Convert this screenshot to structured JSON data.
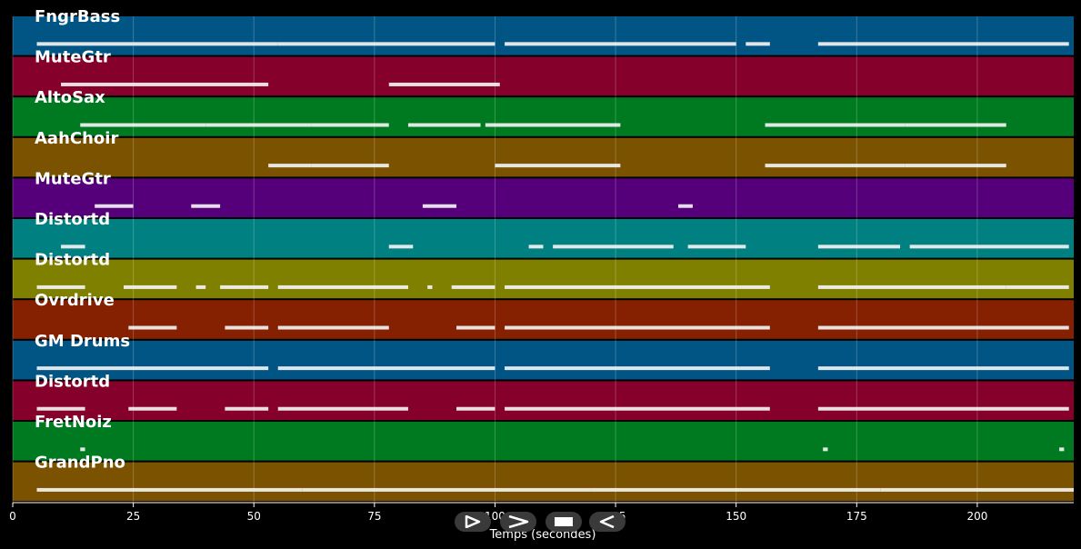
{
  "chart_data": {
    "type": "piano-roll",
    "xlabel": "Temps (secondes)",
    "xlim": [
      0,
      220
    ],
    "x_ticks": [
      0,
      25,
      50,
      75,
      100,
      125,
      150,
      175,
      200
    ],
    "grid": true,
    "tracks": [
      {
        "name": "FngrBass",
        "color": "#005585",
        "notes": [
          [
            5,
            25
          ],
          [
            25,
            55
          ],
          [
            55,
            100
          ],
          [
            102,
            150
          ],
          [
            152,
            157
          ],
          [
            167,
            219
          ]
        ]
      },
      {
        "name": "MuteGtr",
        "color": "#85002b",
        "notes": [
          [
            10,
            53
          ],
          [
            78,
            101
          ]
        ]
      },
      {
        "name": "AltoSax",
        "color": "#007a20",
        "notes": [
          [
            14,
            40
          ],
          [
            40,
            62
          ],
          [
            62,
            78
          ],
          [
            82,
            97
          ],
          [
            98,
            126
          ],
          [
            156,
            185
          ],
          [
            185,
            206
          ]
        ]
      },
      {
        "name": "AahChoir",
        "color": "#7a5200",
        "notes": [
          [
            53,
            62
          ],
          [
            62,
            78
          ],
          [
            100,
            126
          ],
          [
            156,
            185
          ],
          [
            185,
            206
          ]
        ]
      },
      {
        "name": "MuteGtr",
        "color": "#55007a",
        "notes": [
          [
            17,
            25
          ],
          [
            37,
            43
          ],
          [
            85,
            92
          ],
          [
            138,
            141
          ]
        ]
      },
      {
        "name": "Distortd",
        "color": "#008080",
        "notes": [
          [
            10,
            15
          ],
          [
            78,
            83
          ],
          [
            107,
            110
          ],
          [
            112,
            137
          ],
          [
            140,
            152
          ],
          [
            167,
            184
          ],
          [
            186,
            219
          ]
        ]
      },
      {
        "name": "Distortd",
        "color": "#808000",
        "notes": [
          [
            5,
            15
          ],
          [
            23,
            34
          ],
          [
            38,
            40
          ],
          [
            43,
            53
          ],
          [
            55,
            82
          ],
          [
            86,
            87
          ],
          [
            91,
            100
          ],
          [
            102,
            157
          ],
          [
            167,
            206
          ],
          [
            206,
            219
          ]
        ]
      },
      {
        "name": "Ovrdrive",
        "color": "#852000",
        "notes": [
          [
            24,
            34
          ],
          [
            44,
            53
          ],
          [
            55,
            78
          ],
          [
            92,
            100
          ],
          [
            102,
            157
          ],
          [
            167,
            219
          ]
        ]
      },
      {
        "name": "GM Drums",
        "color": "#005585",
        "notes": [
          [
            5,
            53
          ],
          [
            55,
            100
          ],
          [
            102,
            157
          ],
          [
            167,
            219
          ]
        ]
      },
      {
        "name": "Distortd",
        "color": "#85002b",
        "notes": [
          [
            5,
            15
          ],
          [
            24,
            34
          ],
          [
            44,
            53
          ],
          [
            55,
            82
          ],
          [
            92,
            100
          ],
          [
            102,
            157
          ],
          [
            167,
            219
          ]
        ]
      },
      {
        "name": "FretNoiz",
        "color": "#007a20",
        "notes": [
          [
            14,
            15
          ],
          [
            168,
            169
          ],
          [
            217,
            218
          ]
        ]
      },
      {
        "name": "GrandPno",
        "color": "#7a5200",
        "notes": [
          [
            5,
            60
          ],
          [
            60,
            120
          ],
          [
            120,
            180
          ],
          [
            180,
            220
          ]
        ]
      }
    ]
  },
  "controls": {
    "play": "play-icon",
    "fast_forward": "fast-forward-icon",
    "stop": "stop-icon",
    "rewind": "rewind-icon"
  }
}
